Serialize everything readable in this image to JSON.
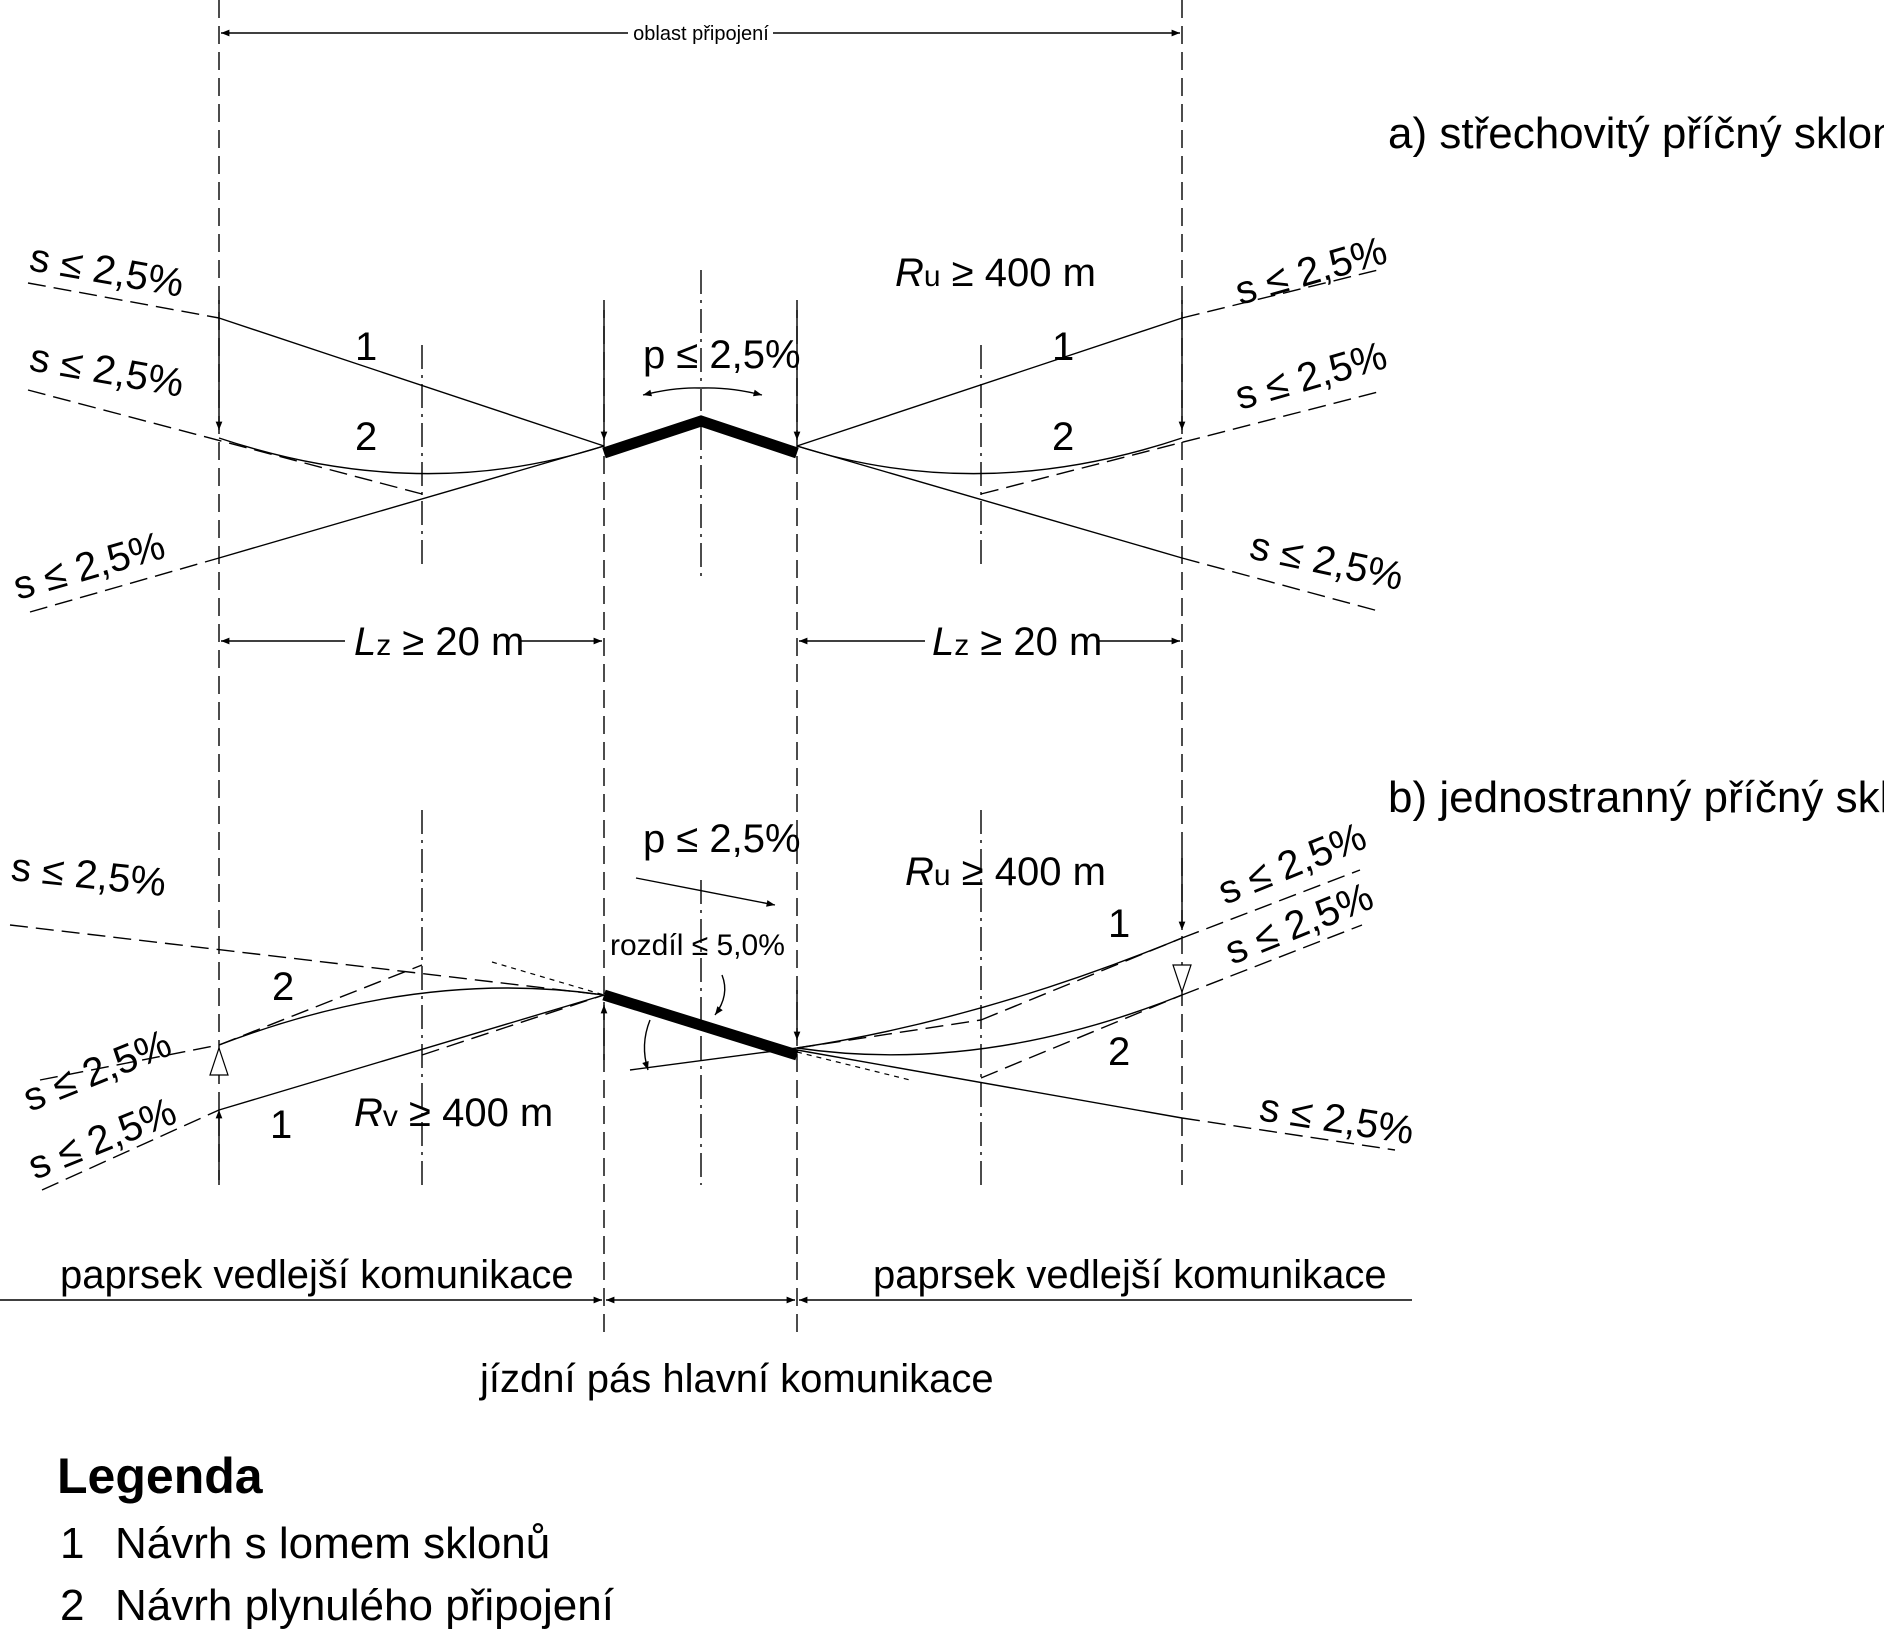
{
  "diagram": {
    "region_label": "oblast připojení",
    "section_a_title": "a) střechovitý příčný sklon",
    "section_b_title": "b) jednostranný příčný sklon",
    "slope_label": "s ≤ 2,5%",
    "crossfall_label": "p ≤ 2,5%",
    "radius_up_sym": "R",
    "radius_up_sub": "u",
    "radius_down_sym": "R",
    "radius_down_sub": "v",
    "radius_rest": " ≥ 400 m",
    "length_sym": "L",
    "length_sub": "z",
    "length_rest": " ≥ 20 m",
    "difference_label": "rozdíl ≤ 5,0%",
    "curve_1": "1",
    "curve_2": "2",
    "side_road_left": "paprsek vedlejší komunikace",
    "side_road_right": "paprsek vedlejší komunikace",
    "main_carriageway": "jízdní pás hlavní komunikace"
  },
  "legend": {
    "title": "Legenda",
    "items": [
      {
        "num": "1",
        "text": "Návrh s lomem sklonů"
      },
      {
        "num": "2",
        "text": "Návrh plynulého připojení"
      }
    ]
  }
}
